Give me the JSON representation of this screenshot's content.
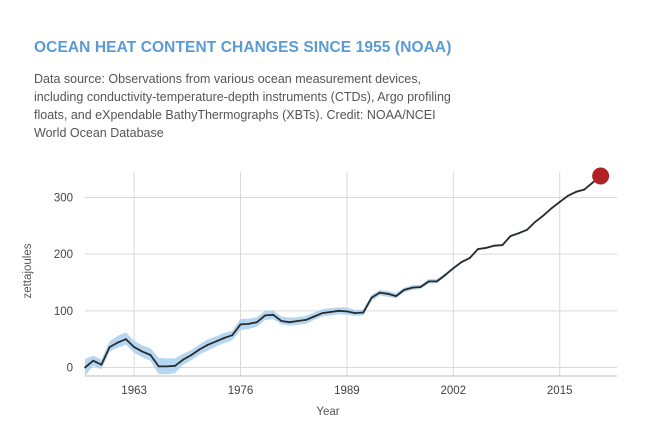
{
  "title": "OCEAN HEAT CONTENT CHANGES SINCE 1955 (NOAA)",
  "description": "Data source: Observations from various ocean measurement devices, including conductivity-temperature-depth instruments (CTDs), Argo profiling floats, and eXpendable BathyThermographs (XBTs). Credit: NOAA/NCEI World Ocean Database",
  "colors": {
    "title": "#5b9bd5",
    "line": "#2b2b2b",
    "band": "#a8d0ef",
    "highlight": "#b22222",
    "grid": "#d9d9d9"
  },
  "chart_data": {
    "type": "line",
    "title": "OCEAN HEAT CONTENT CHANGES SINCE 1955 (NOAA)",
    "xlabel": "Year",
    "ylabel": "zettajoules",
    "xlim": [
      1957,
      2022
    ],
    "ylim": [
      -15,
      345
    ],
    "x_ticks": [
      1963,
      1976,
      1989,
      2002,
      2015
    ],
    "y_ticks": [
      0,
      100,
      200,
      300
    ],
    "grid": "vertical and horizontal",
    "legend": "none",
    "highlight_last_point": true,
    "series": [
      {
        "x": [
          1957,
          1958,
          1959,
          1960,
          1961,
          1962,
          1963,
          1964,
          1965,
          1966,
          1967,
          1968,
          1969,
          1970,
          1971,
          1972,
          1973,
          1974,
          1975,
          1976,
          1977,
          1978,
          1979,
          1980,
          1981,
          1982,
          1983,
          1984,
          1985,
          1986,
          1987,
          1988,
          1989,
          1990,
          1991,
          1992,
          1993,
          1994,
          1995,
          1996,
          1997,
          1998,
          1999,
          2000,
          2001,
          2002,
          2003,
          2004,
          2005,
          2006,
          2007,
          2008,
          2009,
          2010,
          2011,
          2012,
          2013,
          2014,
          2015,
          2016,
          2017,
          2018,
          2019,
          2020
        ],
        "values": [
          0,
          12,
          5,
          36,
          44,
          50,
          36,
          28,
          22,
          2,
          2,
          3,
          14,
          22,
          32,
          40,
          46,
          52,
          57,
          76,
          77,
          80,
          92,
          93,
          82,
          80,
          82,
          84,
          90,
          96,
          98,
          100,
          99,
          96,
          97,
          123,
          132,
          130,
          126,
          137,
          141,
          142,
          152,
          152,
          163,
          175,
          186,
          193,
          209,
          211,
          215,
          216,
          232,
          237,
          243,
          257,
          268,
          281,
          292,
          303,
          310,
          314,
          326,
          338
        ],
        "lower": [
          -15,
          3,
          -3,
          28,
          35,
          40,
          26,
          18,
          12,
          -12,
          -12,
          -10,
          5,
          13,
          23,
          30,
          37,
          43,
          48,
          66,
          68,
          72,
          84,
          85,
          76,
          74,
          75,
          77,
          84,
          90,
          92,
          94,
          93,
          91,
          92,
          117,
          127,
          125,
          122,
          133,
          137,
          139,
          148,
          149,
          160,
          173,
          184,
          191,
          207,
          209,
          213,
          214,
          230,
          235,
          241,
          255,
          266,
          279,
          290,
          301,
          308,
          312,
          324,
          336
        ],
        "upper": [
          15,
          21,
          14,
          46,
          56,
          62,
          47,
          39,
          34,
          17,
          16,
          16,
          24,
          31,
          41,
          50,
          55,
          61,
          65,
          86,
          86,
          89,
          100,
          101,
          90,
          88,
          89,
          91,
          97,
          103,
          105,
          106,
          106,
          102,
          102,
          128,
          137,
          135,
          131,
          141,
          145,
          146,
          156,
          156,
          166,
          178,
          188,
          195,
          211,
          213,
          217,
          218,
          234,
          239,
          245,
          259,
          270,
          283,
          294,
          305,
          312,
          316,
          328,
          340
        ]
      }
    ]
  }
}
